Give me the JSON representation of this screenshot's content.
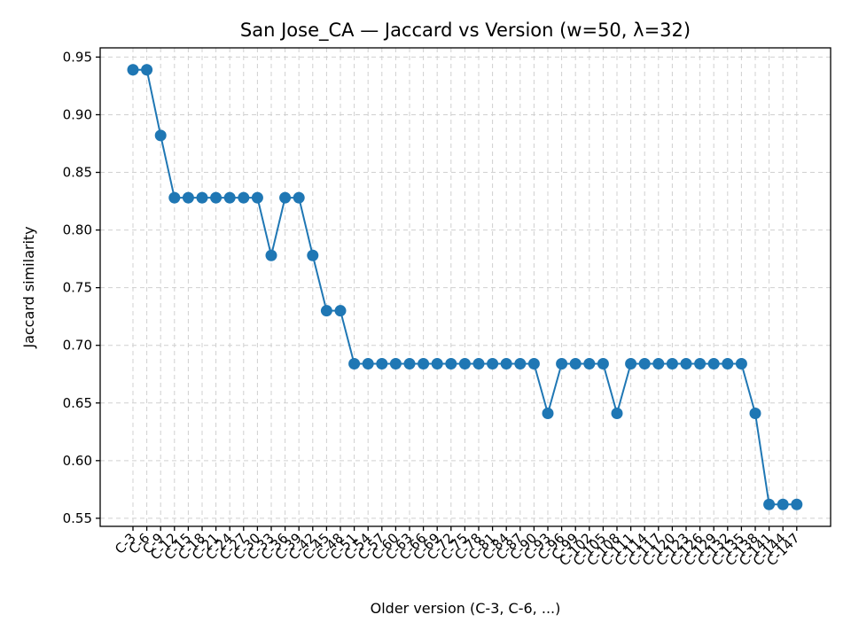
{
  "chart_data": {
    "type": "line",
    "title": "San Jose_CA — Jaccard vs Version (w=50, λ=32)",
    "xlabel": "Older version (C-3, C-6, ...)",
    "ylabel": "Jaccard similarity",
    "ylim": [
      0.543,
      0.958
    ],
    "yticks": [
      0.55,
      0.6,
      0.65,
      0.7,
      0.75,
      0.8,
      0.85,
      0.9,
      0.95
    ],
    "ytick_labels": [
      "0.55",
      "0.60",
      "0.65",
      "0.70",
      "0.75",
      "0.80",
      "0.85",
      "0.90",
      "0.95"
    ],
    "grid": true,
    "series_color": "#1f77b4",
    "categories": [
      "C-3",
      "C-6",
      "C-9",
      "C-12",
      "C-15",
      "C-18",
      "C-21",
      "C-24",
      "C-27",
      "C-30",
      "C-33",
      "C-36",
      "C-39",
      "C-42",
      "C-45",
      "C-48",
      "C-51",
      "C-54",
      "C-57",
      "C-60",
      "C-63",
      "C-66",
      "C-69",
      "C-72",
      "C-75",
      "C-78",
      "C-81",
      "C-84",
      "C-87",
      "C-90",
      "C-93",
      "C-96",
      "C-99",
      "C-102",
      "C-105",
      "C-108",
      "C-111",
      "C-114",
      "C-117",
      "C-120",
      "C-123",
      "C-126",
      "C-129",
      "C-132",
      "C-135",
      "C-138",
      "C-141",
      "C-144",
      "C-147"
    ],
    "values": [
      0.939,
      0.939,
      0.882,
      0.828,
      0.828,
      0.828,
      0.828,
      0.828,
      0.828,
      0.828,
      0.778,
      0.828,
      0.828,
      0.778,
      0.73,
      0.73,
      0.684,
      0.684,
      0.684,
      0.684,
      0.684,
      0.684,
      0.684,
      0.684,
      0.684,
      0.684,
      0.684,
      0.684,
      0.684,
      0.684,
      0.641,
      0.684,
      0.684,
      0.684,
      0.684,
      0.641,
      0.684,
      0.684,
      0.684,
      0.684,
      0.684,
      0.684,
      0.684,
      0.684,
      0.684,
      0.641,
      0.562,
      0.562,
      0.562
    ]
  }
}
